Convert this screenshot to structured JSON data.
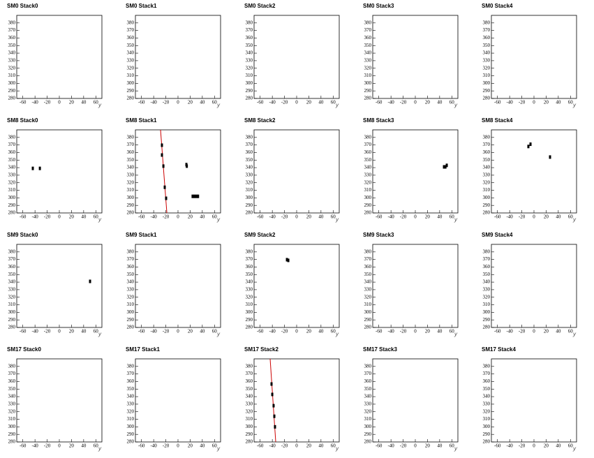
{
  "chart_data": [
    {
      "type": "scatter",
      "title": "SM0 Stack0",
      "xlabel": "y",
      "xlim": [
        -70,
        70
      ],
      "ylim": [
        280,
        390
      ],
      "xticks": [
        -60,
        -40,
        -20,
        0,
        20,
        40,
        60
      ],
      "yticks": [
        280,
        290,
        300,
        310,
        320,
        330,
        340,
        350,
        360,
        370,
        380
      ],
      "color": "#000000",
      "x": [],
      "y": []
    },
    {
      "type": "scatter",
      "title": "SM0 Stack1",
      "xlabel": "y",
      "xlim": [
        -70,
        70
      ],
      "ylim": [
        280,
        390
      ],
      "xticks": [
        -60,
        -40,
        -20,
        0,
        20,
        40,
        60
      ],
      "yticks": [
        280,
        290,
        300,
        310,
        320,
        330,
        340,
        350,
        360,
        370,
        380
      ],
      "color": "#000000",
      "x": [],
      "y": []
    },
    {
      "type": "scatter",
      "title": "SM0 Stack2",
      "xlabel": "y",
      "xlim": [
        -70,
        70
      ],
      "ylim": [
        280,
        390
      ],
      "xticks": [
        -60,
        -40,
        -20,
        0,
        20,
        40,
        60
      ],
      "yticks": [
        280,
        290,
        300,
        310,
        320,
        330,
        340,
        350,
        360,
        370,
        380
      ],
      "color": "#000000",
      "x": [],
      "y": []
    },
    {
      "type": "scatter",
      "title": "SM0 Stack3",
      "xlabel": "y",
      "xlim": [
        -70,
        70
      ],
      "ylim": [
        280,
        390
      ],
      "xticks": [
        -60,
        -40,
        -20,
        0,
        20,
        40,
        60
      ],
      "yticks": [
        280,
        290,
        300,
        310,
        320,
        330,
        340,
        350,
        360,
        370,
        380
      ],
      "color": "#000000",
      "x": [],
      "y": []
    },
    {
      "type": "scatter",
      "title": "SM0 Stack4",
      "xlabel": "y",
      "xlim": [
        -70,
        70
      ],
      "ylim": [
        280,
        390
      ],
      "xticks": [
        -60,
        -40,
        -20,
        0,
        20,
        40,
        60
      ],
      "yticks": [
        280,
        290,
        300,
        310,
        320,
        330,
        340,
        350,
        360,
        370,
        380
      ],
      "color": "#000000",
      "x": [],
      "y": []
    },
    {
      "type": "scatter",
      "title": "SM8 Stack0",
      "xlabel": "y",
      "xlim": [
        -70,
        70
      ],
      "ylim": [
        280,
        390
      ],
      "xticks": [
        -60,
        -40,
        -20,
        0,
        20,
        40,
        60
      ],
      "yticks": [
        280,
        290,
        300,
        310,
        320,
        330,
        340,
        350,
        360,
        370,
        380
      ],
      "color": "#000000",
      "x": [
        -43.6,
        -32
      ],
      "y": [
        339,
        339
      ]
    },
    {
      "type": "scatter",
      "title": "SM8 Stack1",
      "xlabel": "y",
      "xlim": [
        -70,
        70
      ],
      "ylim": [
        280,
        390
      ],
      "xticks": [
        -60,
        -40,
        -20,
        0,
        20,
        40,
        60
      ],
      "yticks": [
        280,
        290,
        300,
        310,
        320,
        330,
        340,
        350,
        360,
        370,
        380
      ],
      "color": "#000000",
      "x": [
        -26.4,
        -26.4,
        -24,
        -21.8,
        -19.5,
        13.8,
        14.5,
        24,
        27,
        30,
        33
      ],
      "y": [
        369.7,
        356.7,
        342,
        314,
        299.4,
        344,
        342,
        302,
        302,
        302,
        302
      ],
      "fit": {
        "color": "#cc0000",
        "x": [
          -28.7,
          -18.3
        ],
        "y": [
          390,
          280
        ]
      }
    },
    {
      "type": "scatter",
      "title": "SM8 Stack2",
      "xlabel": "y",
      "xlim": [
        -70,
        70
      ],
      "ylim": [
        280,
        390
      ],
      "xticks": [
        -60,
        -40,
        -20,
        0,
        20,
        40,
        60
      ],
      "yticks": [
        280,
        290,
        300,
        310,
        320,
        330,
        340,
        350,
        360,
        370,
        380
      ],
      "color": "#000000",
      "x": [],
      "y": []
    },
    {
      "type": "scatter",
      "title": "SM8 Stack3",
      "xlabel": "y",
      "xlim": [
        -70,
        70
      ],
      "ylim": [
        280,
        390
      ],
      "xticks": [
        -60,
        -40,
        -20,
        0,
        20,
        40,
        60
      ],
      "yticks": [
        280,
        290,
        300,
        310,
        320,
        330,
        340,
        350,
        360,
        370,
        380
      ],
      "color": "#000000",
      "x": [
        47.1,
        49.5,
        51.7
      ],
      "y": [
        341,
        341,
        343
      ]
    },
    {
      "type": "scatter",
      "title": "SM8 Stack4",
      "xlabel": "y",
      "xlim": [
        -70,
        70
      ],
      "ylim": [
        280,
        390
      ],
      "xticks": [
        -60,
        -40,
        -20,
        0,
        20,
        40,
        60
      ],
      "yticks": [
        280,
        290,
        300,
        310,
        320,
        330,
        340,
        350,
        360,
        370,
        380
      ],
      "color": "#000000",
      "x": [
        -9.2,
        -5.7,
        26.4
      ],
      "y": [
        368,
        371,
        354
      ]
    },
    {
      "type": "scatter",
      "title": "SM9 Stack0",
      "xlabel": "y",
      "xlim": [
        -70,
        70
      ],
      "ylim": [
        280,
        390
      ],
      "xticks": [
        -60,
        -40,
        -20,
        0,
        20,
        40,
        60
      ],
      "yticks": [
        280,
        290,
        300,
        310,
        320,
        330,
        340,
        350,
        360,
        370,
        380
      ],
      "color": "#000000",
      "x": [
        50.5
      ],
      "y": [
        341
      ]
    },
    {
      "type": "scatter",
      "title": "SM9 Stack1",
      "xlabel": "y",
      "xlim": [
        -70,
        70
      ],
      "ylim": [
        280,
        390
      ],
      "xticks": [
        -60,
        -40,
        -20,
        0,
        20,
        40,
        60
      ],
      "yticks": [
        280,
        290,
        300,
        310,
        320,
        330,
        340,
        350,
        360,
        370,
        380
      ],
      "color": "#000000",
      "x": [],
      "y": []
    },
    {
      "type": "scatter",
      "title": "SM9 Stack2",
      "xlabel": "y",
      "xlim": [
        -70,
        70
      ],
      "ylim": [
        280,
        390
      ],
      "xticks": [
        -60,
        -40,
        -20,
        0,
        20,
        40,
        60
      ],
      "yticks": [
        280,
        290,
        300,
        310,
        320,
        330,
        340,
        350,
        360,
        370,
        380
      ],
      "color": "#000000",
      "x": [
        -16,
        -13.7
      ],
      "y": [
        369.7,
        368.8
      ]
    },
    {
      "type": "scatter",
      "title": "SM9 Stack3",
      "xlabel": "y",
      "xlim": [
        -70,
        70
      ],
      "ylim": [
        280,
        390
      ],
      "xticks": [
        -60,
        -40,
        -20,
        0,
        20,
        40,
        60
      ],
      "yticks": [
        280,
        290,
        300,
        310,
        320,
        330,
        340,
        350,
        360,
        370,
        380
      ],
      "color": "#000000",
      "x": [],
      "y": []
    },
    {
      "type": "scatter",
      "title": "SM9 Stack4",
      "xlabel": "y",
      "xlim": [
        -70,
        70
      ],
      "ylim": [
        280,
        390
      ],
      "xticks": [
        -60,
        -40,
        -20,
        0,
        20,
        40,
        60
      ],
      "yticks": [
        280,
        290,
        300,
        310,
        320,
        330,
        340,
        350,
        360,
        370,
        380
      ],
      "color": "#000000",
      "x": [],
      "y": []
    },
    {
      "type": "scatter",
      "title": "SM17 Stack0",
      "xlabel": "y",
      "xlim": [
        -70,
        70
      ],
      "ylim": [
        280,
        390
      ],
      "xticks": [
        -60,
        -40,
        -20,
        0,
        20,
        40,
        60
      ],
      "yticks": [
        280,
        290,
        300,
        310,
        320,
        330,
        340,
        350,
        360,
        370,
        380
      ],
      "color": "#000000",
      "x": [],
      "y": []
    },
    {
      "type": "scatter",
      "title": "SM17 Stack1",
      "xlabel": "y",
      "xlim": [
        -70,
        70
      ],
      "ylim": [
        280,
        390
      ],
      "xticks": [
        -60,
        -40,
        -20,
        0,
        20,
        40,
        60
      ],
      "yticks": [
        280,
        290,
        300,
        310,
        320,
        330,
        340,
        350,
        360,
        370,
        380
      ],
      "color": "#000000",
      "x": [],
      "y": []
    },
    {
      "type": "scatter",
      "title": "SM17 Stack2",
      "xlabel": "y",
      "xlim": [
        -70,
        70
      ],
      "ylim": [
        280,
        390
      ],
      "xticks": [
        -60,
        -40,
        -20,
        0,
        20,
        40,
        60
      ],
      "yticks": [
        280,
        290,
        300,
        310,
        320,
        330,
        340,
        350,
        360,
        370,
        380
      ],
      "color": "#000000",
      "x": [
        -41.3,
        -40.1,
        -37.9,
        -36.7,
        -35.6
      ],
      "y": [
        356.7,
        342.9,
        328,
        314,
        300
      ],
      "fit": {
        "color": "#cc0000",
        "x": [
          -43.6,
          -34.4
        ],
        "y": [
          390,
          280
        ]
      }
    },
    {
      "type": "scatter",
      "title": "SM17 Stack3",
      "xlabel": "y",
      "xlim": [
        -70,
        70
      ],
      "ylim": [
        280,
        390
      ],
      "xticks": [
        -60,
        -40,
        -20,
        0,
        20,
        40,
        60
      ],
      "yticks": [
        280,
        290,
        300,
        310,
        320,
        330,
        340,
        350,
        360,
        370,
        380
      ],
      "color": "#000000",
      "x": [],
      "y": []
    },
    {
      "type": "scatter",
      "title": "SM17 Stack4",
      "xlabel": "y",
      "xlim": [
        -70,
        70
      ],
      "ylim": [
        280,
        390
      ],
      "xticks": [
        -60,
        -40,
        -20,
        0,
        20,
        40,
        60
      ],
      "yticks": [
        280,
        290,
        300,
        310,
        320,
        330,
        340,
        350,
        360,
        370,
        380
      ],
      "color": "#000000",
      "x": [],
      "y": []
    }
  ]
}
